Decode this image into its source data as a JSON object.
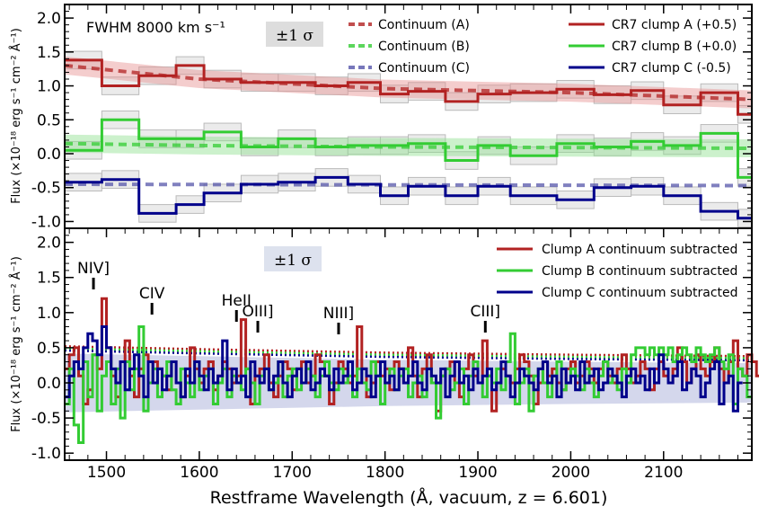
{
  "chart_data": [
    {
      "type": "line",
      "panel": "top",
      "annotation": "FWHM 8000 km s⁻¹",
      "sigma_label": "±1 σ",
      "ylabel": "Flux (×10⁻¹⁸ erg s⁻¹ cm⁻² Å⁻¹)",
      "xlim": [
        1455,
        2195
      ],
      "ylim": [
        -1.1,
        2.2
      ],
      "yticks": [
        -1.0,
        -0.5,
        0.0,
        0.5,
        1.0,
        1.5,
        2.0
      ],
      "ytick_labels": [
        "-1.0",
        "-0.5",
        "0.0",
        "0.5",
        "1.0",
        "1.5",
        "2.0"
      ],
      "legend_left": [
        "Continuum (A)",
        "Continuum (B)",
        "Continuum (C)"
      ],
      "legend_right": [
        "CR7 clump A (+0.5)",
        "CR7 clump B (+0.0)",
        "CR7 clump C (-0.5)"
      ],
      "bin_edges": [
        1455,
        1495,
        1535,
        1575,
        1605,
        1645,
        1685,
        1725,
        1760,
        1795,
        1825,
        1865,
        1900,
        1935,
        1985,
        2025,
        2065,
        2100,
        2140,
        2180,
        2195
      ],
      "series": [
        {
          "name": "CR7 clump A (+0.5)",
          "color": "#b22222",
          "values": [
            1.38,
            1.0,
            1.15,
            1.3,
            1.1,
            1.05,
            1.05,
            1.0,
            1.05,
            0.88,
            0.92,
            0.77,
            0.88,
            0.9,
            0.95,
            0.87,
            0.93,
            0.72,
            0.9,
            0.58
          ]
        },
        {
          "name": "CR7 clump B (+0.0)",
          "color": "#33cc33",
          "values": [
            0.05,
            0.5,
            0.22,
            0.22,
            0.32,
            0.1,
            0.22,
            0.1,
            0.12,
            0.12,
            0.15,
            -0.1,
            0.12,
            -0.03,
            0.15,
            0.1,
            0.18,
            0.12,
            0.3,
            -0.35
          ]
        },
        {
          "name": "CR7 clump C (-0.5)",
          "color": "#00008b",
          "values": [
            -0.42,
            -0.38,
            -0.88,
            -0.75,
            -0.58,
            -0.45,
            -0.42,
            -0.35,
            -0.45,
            -0.62,
            -0.48,
            -0.62,
            -0.48,
            -0.62,
            -0.68,
            -0.5,
            -0.48,
            -0.62,
            -0.85,
            -0.95
          ]
        }
      ],
      "continuum": [
        {
          "name": "Continuum (A)",
          "color": "#b22222",
          "x": [
            1455,
            1600,
            1800,
            2000,
            2195
          ],
          "values": [
            1.3,
            1.1,
            0.96,
            0.9,
            0.8
          ]
        },
        {
          "name": "Continuum (B)",
          "color": "#33cc33",
          "x": [
            1455,
            1600,
            1800,
            2000,
            2195
          ],
          "values": [
            0.15,
            0.12,
            0.1,
            0.09,
            0.08
          ]
        },
        {
          "name": "Continuum (C)",
          "color": "#5555aa",
          "x": [
            1455,
            2195
          ],
          "values": [
            -0.45,
            -0.47
          ]
        }
      ]
    },
    {
      "type": "line",
      "panel": "bottom",
      "sigma_label": "±1 σ",
      "xlabel": "Restframe Wavelength (Å, vacuum, z = 6.601)",
      "ylabel": "Flux (×10⁻¹⁸ erg s⁻¹ cm⁻² Å⁻¹)",
      "xlim": [
        1455,
        2195
      ],
      "ylim": [
        -1.1,
        2.2
      ],
      "xticks": [
        1500,
        1600,
        1700,
        1800,
        1900,
        2000,
        2100
      ],
      "xtick_labels": [
        "1500",
        "1600",
        "1700",
        "1800",
        "1900",
        "2000",
        "2100"
      ],
      "yticks": [
        -1.0,
        -0.5,
        0.0,
        0.5,
        1.0,
        1.5,
        2.0
      ],
      "ytick_labels": [
        "-1.0",
        "-0.5",
        "0.0",
        "0.5",
        "1.0",
        "1.5",
        "2.0"
      ],
      "legend": [
        "Clump A continuum subtracted",
        "Clump B continuum subtracted",
        "Clump C continuum subtracted"
      ],
      "line_markers": [
        {
          "label": "NIV]",
          "x": 1486
        },
        {
          "label": "CIV",
          "x": 1549
        },
        {
          "label": "HeII",
          "x": 1640
        },
        {
          "label": "OIII]",
          "x": 1663
        },
        {
          "label": "NIII]",
          "x": 1750
        },
        {
          "label": "CIII]",
          "x": 1908
        }
      ],
      "x_start": 1455,
      "step": 5,
      "series": [
        {
          "name": "Clump A continuum subtracted",
          "color": "#b22222",
          "values": [
            0.2,
            0.4,
            0.5,
            0.1,
            -0.3,
            -0.1,
            0.4,
            0.2,
            1.2,
            0.5,
            0.1,
            -0.2,
            0.3,
            0.6,
            0.1,
            -0.2,
            0.2,
            0.4,
            0.0,
            0.3,
            0.2,
            0.1,
            -0.1,
            0.3,
            0.0,
            -0.2,
            0.1,
            0.5,
            0.2,
            0.0,
            0.2,
            0.3,
            -0.1,
            0.1,
            0.3,
            0.2,
            0.0,
            0.1,
            0.9,
            0.2,
            -0.3,
            0.1,
            0.2,
            0.4,
            0.0,
            -0.2,
            0.1,
            0.3,
            0.2,
            -0.1,
            0.2,
            0.3,
            0.0,
            0.1,
            0.4,
            0.3,
            0.1,
            -0.3,
            0.0,
            0.3,
            0.2,
            0.0,
            0.1,
            0.8,
            0.2,
            -0.2,
            0.0,
            0.3,
            0.1,
            0.2,
            -0.1,
            0.3,
            0.2,
            0.0,
            0.5,
            0.1,
            -0.2,
            0.2,
            0.4,
            0.0,
            -0.4,
            0.1,
            0.2,
            0.3,
            0.0,
            -0.2,
            0.2,
            0.4,
            0.1,
            0.0,
            0.6,
            0.1,
            -0.4,
            0.0,
            0.2,
            0.1,
            0.0,
            0.2,
            0.4,
            0.3,
            0.1,
            -0.3,
            0.0,
            0.3,
            0.1,
            0.2,
            0.0,
            -0.1,
            0.2,
            0.3,
            0.0,
            0.1,
            0.3,
            0.2,
            0.0,
            0.2,
            0.3,
            0.1,
            0.0,
            0.2,
            0.4,
            0.2,
            0.0,
            0.1,
            0.3,
            0.2,
            -0.1,
            0.2,
            0.3,
            0.1,
            0.0,
            0.2,
            0.5,
            0.3,
            0.0,
            0.2,
            0.4,
            0.2,
            0.1,
            0.3,
            0.5,
            0.2,
            0.0,
            0.3,
            0.6,
            0.2,
            0.1,
            0.4,
            0.3,
            0.1
          ]
        },
        {
          "name": "Clump B continuum subtracted",
          "color": "#33cc33",
          "values": [
            -0.3,
            0.2,
            -0.6,
            -0.85,
            0.3,
            -0.2,
            0.4,
            -0.4,
            0.1,
            0.3,
            -0.3,
            0.2,
            -0.5,
            0.3,
            -0.1,
            0.2,
            0.8,
            -0.4,
            0.0,
            0.2,
            -0.2,
            0.1,
            0.3,
            -0.1,
            -0.3,
            0.2,
            0.0,
            -0.2,
            0.3,
            -0.1,
            0.1,
            0.2,
            -0.3,
            0.0,
            0.2,
            -0.2,
            0.1,
            0.0,
            -0.1,
            0.2,
            0.0,
            -0.3,
            0.1,
            0.2,
            -0.1,
            0.0,
            0.3,
            -0.2,
            0.1,
            0.2,
            -0.1,
            0.0,
            0.2,
            0.1,
            -0.2,
            0.1,
            0.3,
            0.0,
            -0.1,
            0.2,
            0.0,
            0.1,
            -0.2,
            0.2,
            0.0,
            -0.1,
            0.3,
            0.1,
            -0.3,
            0.0,
            0.2,
            -0.1,
            0.1,
            0.2,
            -0.2,
            0.0,
            0.1,
            -0.2,
            0.2,
            0.0,
            -0.5,
            0.1,
            0.2,
            -0.1,
            0.0,
            0.2,
            -0.3,
            0.1,
            0.3,
            0.0,
            -0.2,
            0.1,
            0.0,
            0.2,
            -0.1,
            0.3,
            0.7,
            -0.3,
            0.0,
            0.2,
            -0.4,
            0.1,
            0.2,
            0.0,
            -0.2,
            0.1,
            0.3,
            -0.1,
            0.0,
            0.2,
            0.1,
            -0.1,
            0.2,
            0.0,
            -0.2,
            0.1,
            0.3,
            0.0,
            0.1,
            -0.1,
            0.2,
            0.0,
            0.4,
            0.5,
            0.5,
            0.4,
            0.5,
            0.4,
            0.5,
            0.4,
            0.5,
            0.3,
            0.4,
            0.5,
            0.4,
            0.3,
            0.5,
            0.4,
            0.3,
            0.4,
            0.5,
            0.3,
            0.2,
            0.4,
            -0.3,
            0.2,
            0.1,
            -0.2
          ]
        },
        {
          "name": "Clump C continuum subtracted",
          "color": "#00008b",
          "values": [
            -0.2,
            0.1,
            0.3,
            0.2,
            0.5,
            0.7,
            0.6,
            0.4,
            0.8,
            0.5,
            0.2,
            0.0,
            0.3,
            -0.1,
            0.2,
            0.4,
            0.1,
            -0.2,
            0.3,
            0.0,
            0.2,
            -0.1,
            0.1,
            0.3,
            0.0,
            -0.2,
            0.2,
            0.0,
            0.3,
            0.1,
            -0.1,
            0.2,
            0.0,
            0.1,
            0.6,
            -0.1,
            0.2,
            0.0,
            0.1,
            -0.2,
            0.3,
            0.1,
            0.0,
            0.2,
            -0.1,
            0.1,
            0.3,
            0.0,
            -0.2,
            0.1,
            0.2,
            0.0,
            0.3,
            -0.1,
            0.0,
            0.2,
            0.1,
            -0.1,
            0.2,
            0.0,
            0.1,
            0.3,
            -0.1,
            0.0,
            0.2,
            0.1,
            -0.2,
            0.1,
            0.3,
            0.0,
            0.1,
            -0.1,
            0.2,
            0.0,
            0.1,
            0.3,
            0.0,
            -0.1,
            0.2,
            0.1,
            0.0,
            0.2,
            -0.2,
            0.1,
            0.3,
            0.0,
            0.1,
            -0.1,
            0.2,
            0.0,
            0.1,
            0.2,
            -0.1,
            0.0,
            0.3,
            0.1,
            -0.2,
            0.0,
            0.2,
            0.1,
            0.0,
            -0.1,
            0.2,
            0.3,
            0.0,
            0.1,
            -0.2,
            0.2,
            0.0,
            0.1,
            -0.1,
            0.3,
            0.0,
            0.1,
            0.2,
            -0.1,
            0.0,
            0.2,
            0.1,
            0.0,
            -0.2,
            0.1,
            0.2,
            0.0,
            0.1,
            -0.1,
            0.2,
            0.0,
            0.4,
            0.2,
            0.0,
            0.1,
            0.3,
            -0.1,
            0.0,
            0.2,
            0.1,
            -0.2,
            0.0,
            0.2,
            0.3,
            -0.3,
            0.0,
            0.1,
            -0.4,
            0.0
          ]
        }
      ]
    }
  ]
}
